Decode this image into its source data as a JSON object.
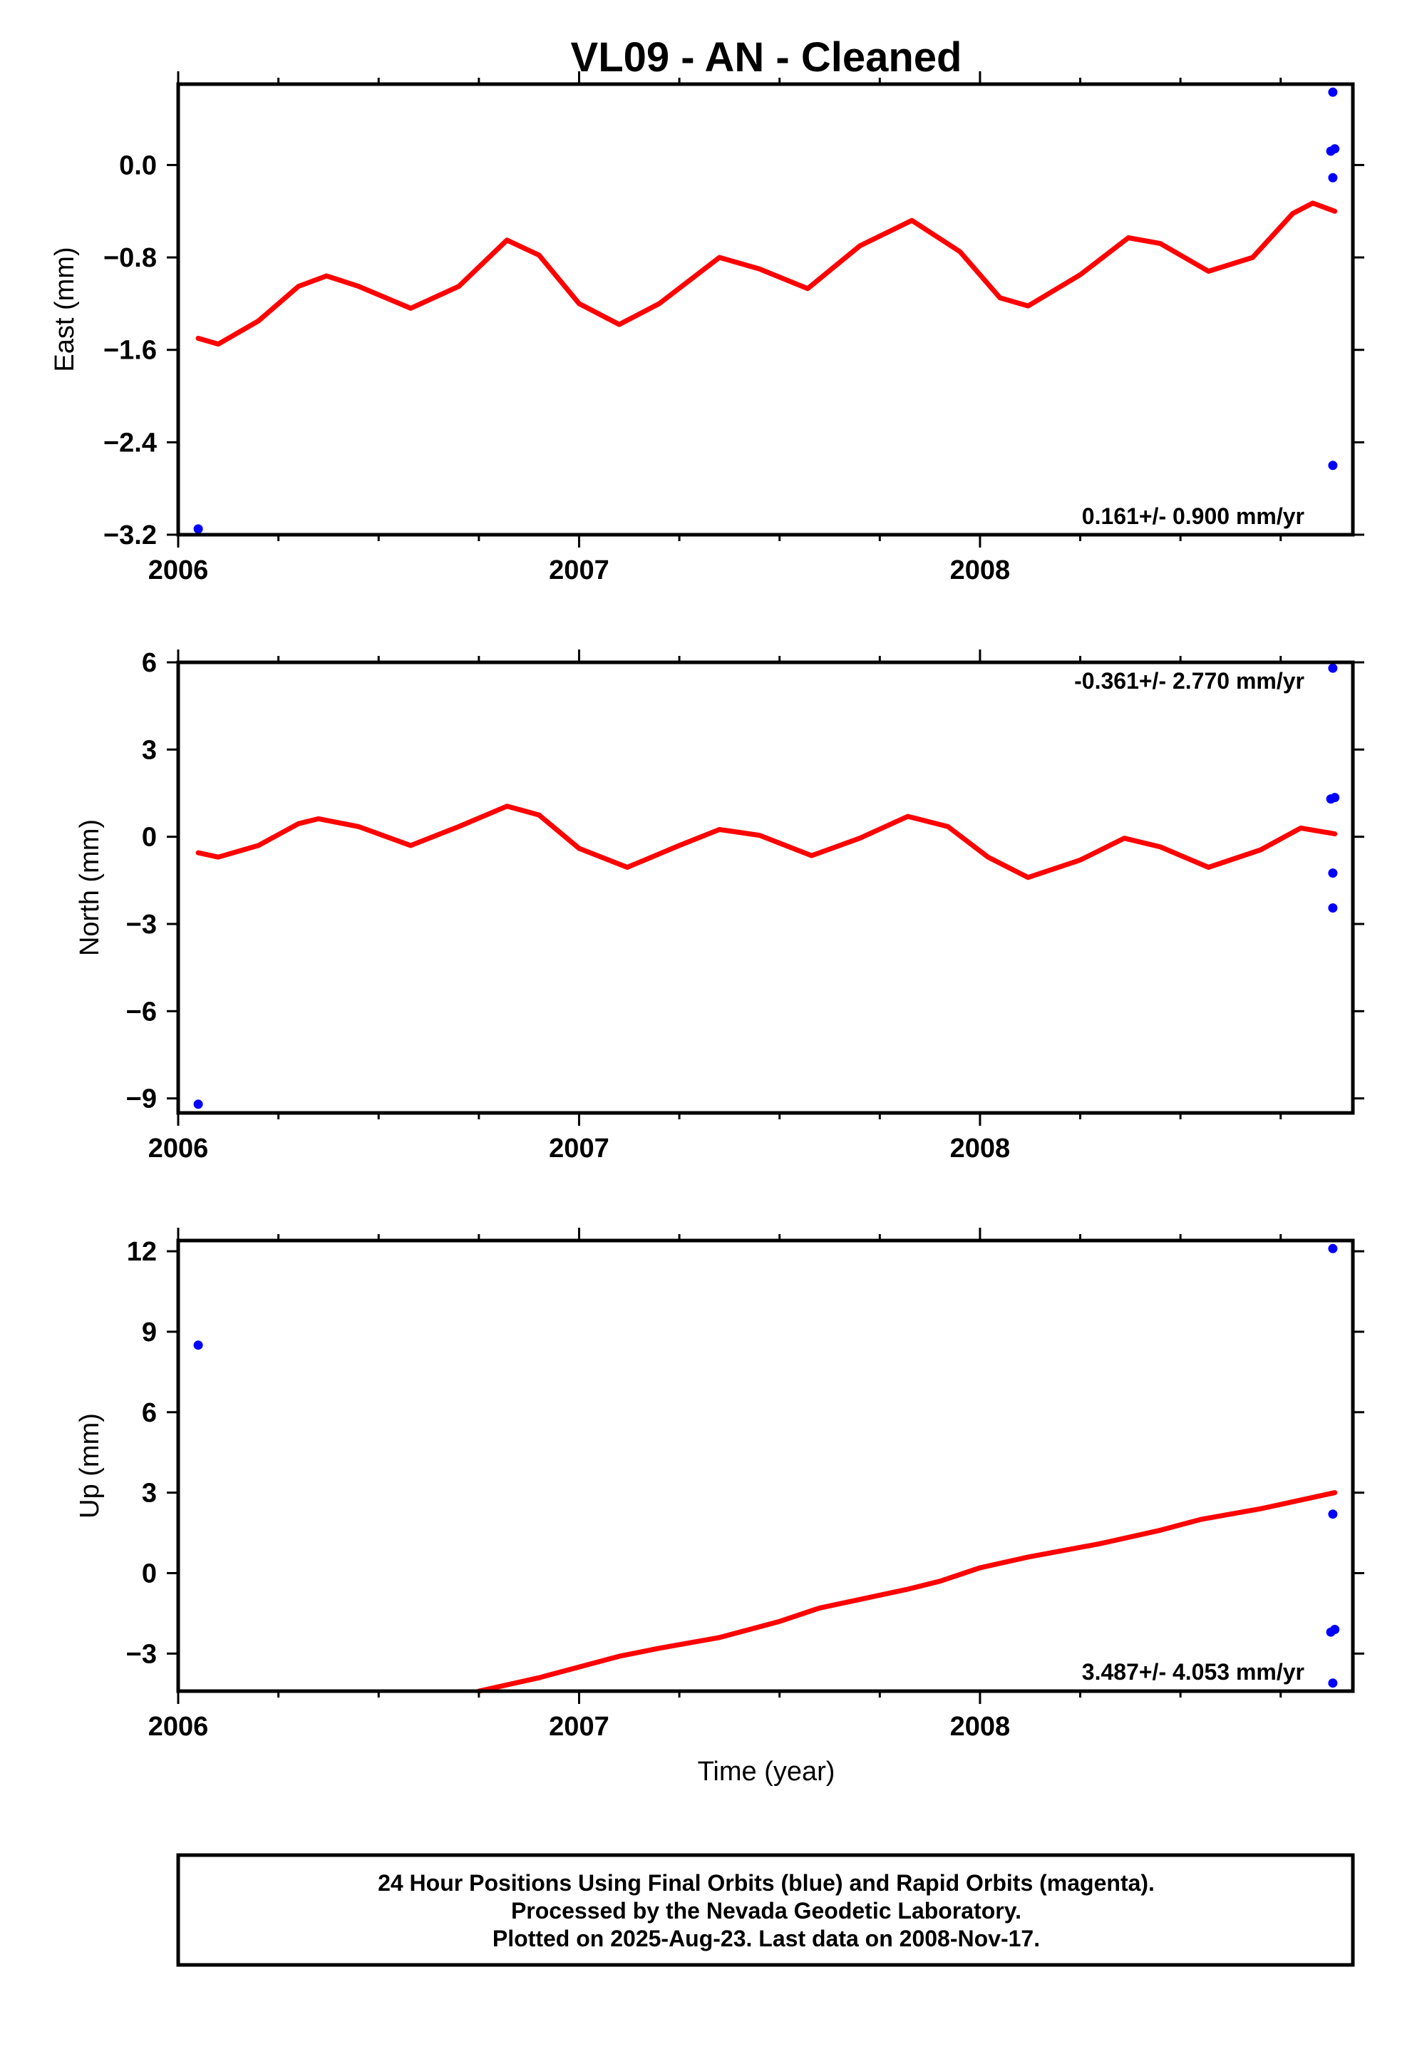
{
  "title": "VL09  - AN - Cleaned",
  "x_axis_label": "Time (year)",
  "footer": [
    "24 Hour Positions Using Final Orbits (blue) and Rapid Orbits (magenta).",
    "Processed by the Nevada Geodetic Laboratory.",
    "Plotted on 2025-Aug-23. Last data on 2008-Nov-17."
  ],
  "colors": {
    "points": "#0000ff",
    "model": "#ff0000",
    "frame": "#000000"
  },
  "chart_data": [
    {
      "type": "scatter",
      "name": "east",
      "ylabel": "East (mm)",
      "xlim": [
        2006.0,
        2008.93
      ],
      "ylim": [
        -3.2,
        0.7
      ],
      "xticks": [
        2006,
        2007,
        2008
      ],
      "xtick_labels": [
        "2006",
        "2007",
        "2008"
      ],
      "yticks": [
        0.0,
        -0.8,
        -1.6,
        -2.4,
        -3.2
      ],
      "ytick_labels": [
        "0.0",
        "−0.8",
        "−1.6",
        "−2.4",
        "−3.2"
      ],
      "rate_label": "0.161+/- 0.900 mm/yr",
      "rate_position": "bottom-right",
      "points": [
        [
          2006.05,
          -3.15
        ],
        [
          2008.88,
          0.63
        ],
        [
          2008.875,
          0.12
        ],
        [
          2008.885,
          0.14
        ],
        [
          2008.88,
          -0.11
        ],
        [
          2008.88,
          -2.6
        ]
      ],
      "model_curve": [
        [
          2006.05,
          -1.5
        ],
        [
          2006.1,
          -1.55
        ],
        [
          2006.2,
          -1.35
        ],
        [
          2006.3,
          -1.05
        ],
        [
          2006.37,
          -0.96
        ],
        [
          2006.45,
          -1.05
        ],
        [
          2006.58,
          -1.24
        ],
        [
          2006.7,
          -1.05
        ],
        [
          2006.82,
          -0.65
        ],
        [
          2006.9,
          -0.78
        ],
        [
          2007.0,
          -1.2
        ],
        [
          2007.1,
          -1.38
        ],
        [
          2007.2,
          -1.2
        ],
        [
          2007.35,
          -0.8
        ],
        [
          2007.45,
          -0.9
        ],
        [
          2007.57,
          -1.07
        ],
        [
          2007.7,
          -0.7
        ],
        [
          2007.83,
          -0.48
        ],
        [
          2007.95,
          -0.75
        ],
        [
          2008.05,
          -1.15
        ],
        [
          2008.12,
          -1.22
        ],
        [
          2008.25,
          -0.95
        ],
        [
          2008.37,
          -0.63
        ],
        [
          2008.45,
          -0.68
        ],
        [
          2008.57,
          -0.92
        ],
        [
          2008.68,
          -0.8
        ],
        [
          2008.78,
          -0.42
        ],
        [
          2008.83,
          -0.33
        ],
        [
          2008.885,
          -0.4
        ]
      ]
    },
    {
      "type": "scatter",
      "name": "north",
      "ylabel": "North (mm)",
      "xlim": [
        2006.0,
        2008.93
      ],
      "ylim": [
        -9.5,
        6.0
      ],
      "xticks": [
        2006,
        2007,
        2008
      ],
      "xtick_labels": [
        "2006",
        "2007",
        "2008"
      ],
      "yticks": [
        6,
        3,
        0,
        -3,
        -6,
        -9
      ],
      "ytick_labels": [
        "6",
        "3",
        "0",
        "−3",
        "−6",
        "−9"
      ],
      "rate_label": "-0.361+/- 2.770 mm/yr",
      "rate_position": "top-right",
      "points": [
        [
          2006.05,
          -9.2
        ],
        [
          2008.88,
          5.8
        ],
        [
          2008.875,
          1.3
        ],
        [
          2008.885,
          1.35
        ],
        [
          2008.88,
          -1.25
        ],
        [
          2008.88,
          -2.45
        ]
      ],
      "model_curve": [
        [
          2006.05,
          -0.55
        ],
        [
          2006.1,
          -0.7
        ],
        [
          2006.2,
          -0.3
        ],
        [
          2006.3,
          0.45
        ],
        [
          2006.35,
          0.62
        ],
        [
          2006.45,
          0.35
        ],
        [
          2006.58,
          -0.3
        ],
        [
          2006.7,
          0.35
        ],
        [
          2006.82,
          1.05
        ],
        [
          2006.9,
          0.75
        ],
        [
          2007.0,
          -0.4
        ],
        [
          2007.12,
          -1.05
        ],
        [
          2007.25,
          -0.3
        ],
        [
          2007.35,
          0.25
        ],
        [
          2007.45,
          0.05
        ],
        [
          2007.58,
          -0.65
        ],
        [
          2007.7,
          -0.05
        ],
        [
          2007.82,
          0.7
        ],
        [
          2007.92,
          0.35
        ],
        [
          2008.02,
          -0.7
        ],
        [
          2008.12,
          -1.4
        ],
        [
          2008.25,
          -0.8
        ],
        [
          2008.36,
          -0.05
        ],
        [
          2008.45,
          -0.35
        ],
        [
          2008.57,
          -1.05
        ],
        [
          2008.7,
          -0.45
        ],
        [
          2008.8,
          0.3
        ],
        [
          2008.885,
          0.1
        ]
      ]
    },
    {
      "type": "scatter",
      "name": "up",
      "ylabel": "Up (mm)",
      "xlim": [
        2006.0,
        2008.93
      ],
      "ylim": [
        -4.4,
        12.4
      ],
      "xticks": [
        2006,
        2007,
        2008
      ],
      "xtick_labels": [
        "2006",
        "2007",
        "2008"
      ],
      "yticks": [
        12,
        9,
        6,
        3,
        0,
        -3
      ],
      "ytick_labels": [
        "12",
        "9",
        "6",
        "3",
        "0",
        "−3"
      ],
      "rate_label": "3.487+/- 4.053 mm/yr",
      "rate_position": "bottom-right",
      "points": [
        [
          2006.05,
          8.5
        ],
        [
          2008.88,
          12.1
        ],
        [
          2008.88,
          2.2
        ],
        [
          2008.875,
          -2.2
        ],
        [
          2008.885,
          -2.1
        ],
        [
          2008.88,
          -4.1
        ]
      ],
      "model_curve": [
        [
          2006.75,
          -4.4
        ],
        [
          2006.9,
          -3.9
        ],
        [
          2007.0,
          -3.5
        ],
        [
          2007.1,
          -3.1
        ],
        [
          2007.2,
          -2.8
        ],
        [
          2007.35,
          -2.4
        ],
        [
          2007.5,
          -1.8
        ],
        [
          2007.6,
          -1.3
        ],
        [
          2007.82,
          -0.6
        ],
        [
          2007.9,
          -0.3
        ],
        [
          2008.0,
          0.2
        ],
        [
          2008.12,
          0.6
        ],
        [
          2008.3,
          1.1
        ],
        [
          2008.45,
          1.6
        ],
        [
          2008.55,
          2.0
        ],
        [
          2008.7,
          2.4
        ],
        [
          2008.885,
          3.0
        ]
      ]
    }
  ]
}
